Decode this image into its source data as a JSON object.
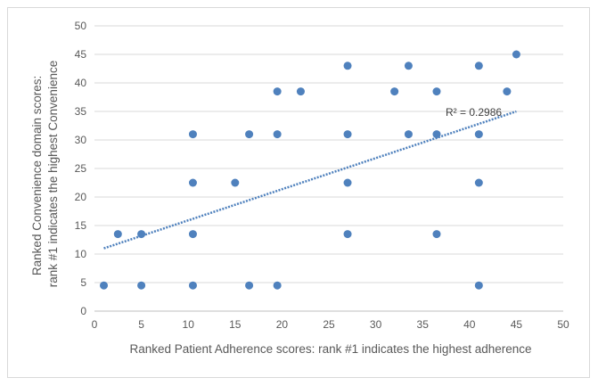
{
  "chart_data": {
    "type": "scatter",
    "xlabel": "Ranked Patient Adherence scores: rank #1 indicates the highest adherence",
    "ylabel_lines": [
      "Ranked Convenience domain scores:",
      "rank #1 indicates the highest Convenience"
    ],
    "xlim": [
      0,
      50
    ],
    "ylim": [
      0,
      50
    ],
    "x_ticks": [
      0,
      5,
      10,
      15,
      20,
      25,
      30,
      35,
      40,
      45,
      50
    ],
    "y_ticks": [
      0,
      5,
      10,
      15,
      20,
      25,
      30,
      35,
      40,
      45,
      50
    ],
    "grid": "horizontal",
    "marker_color": "#4f81bd",
    "trendline": {
      "type": "linear",
      "style": "dotted",
      "x_range": [
        1,
        45
      ],
      "y_at_start": 11.0,
      "y_at_end": 35.0,
      "label": "R² = 0.2986"
    },
    "points": [
      {
        "x": 1,
        "y": 4.5
      },
      {
        "x": 2.5,
        "y": 13.5
      },
      {
        "x": 5,
        "y": 4.5
      },
      {
        "x": 5,
        "y": 13.5
      },
      {
        "x": 10.5,
        "y": 4.5
      },
      {
        "x": 10.5,
        "y": 13.5
      },
      {
        "x": 10.5,
        "y": 22.5
      },
      {
        "x": 10.5,
        "y": 31
      },
      {
        "x": 15,
        "y": 22.5
      },
      {
        "x": 16.5,
        "y": 4.5
      },
      {
        "x": 16.5,
        "y": 31
      },
      {
        "x": 19.5,
        "y": 4.5
      },
      {
        "x": 19.5,
        "y": 31
      },
      {
        "x": 19.5,
        "y": 38.5
      },
      {
        "x": 22,
        "y": 38.5
      },
      {
        "x": 27,
        "y": 13.5
      },
      {
        "x": 27,
        "y": 22.5
      },
      {
        "x": 27,
        "y": 31
      },
      {
        "x": 27,
        "y": 43
      },
      {
        "x": 32,
        "y": 38.5
      },
      {
        "x": 33.5,
        "y": 31
      },
      {
        "x": 33.5,
        "y": 43
      },
      {
        "x": 36.5,
        "y": 13.5
      },
      {
        "x": 36.5,
        "y": 31
      },
      {
        "x": 36.5,
        "y": 38.5
      },
      {
        "x": 41,
        "y": 4.5
      },
      {
        "x": 41,
        "y": 22.5
      },
      {
        "x": 41,
        "y": 31
      },
      {
        "x": 41,
        "y": 43
      },
      {
        "x": 44,
        "y": 38.5
      },
      {
        "x": 45,
        "y": 45
      }
    ]
  }
}
